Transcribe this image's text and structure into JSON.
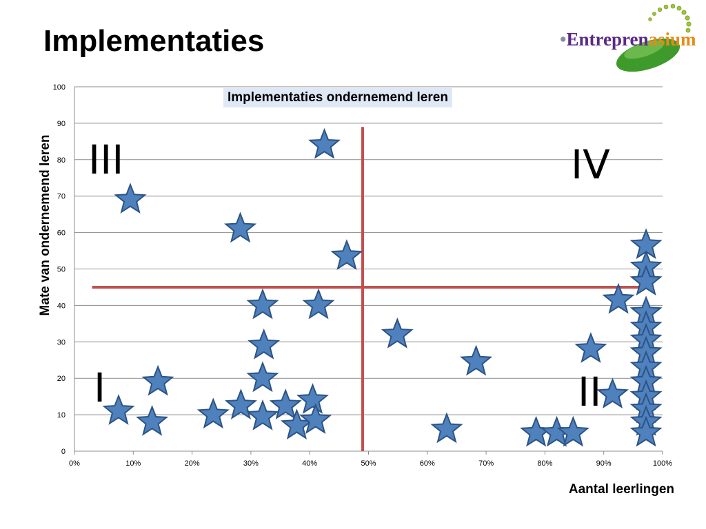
{
  "slide": {
    "title": "Implementaties",
    "logo": {
      "bullet": "•",
      "text_part1": "Entrepren",
      "text_part2": "asium"
    }
  },
  "colors": {
    "star_fill": "#4f81bd",
    "star_stroke": "#2c5386",
    "divider": "#c0504d",
    "gridline": "#8c8c8c",
    "title_bg": "#dfe8f5"
  },
  "icons": {
    "logo": "entreprenasium-logo",
    "marker": "star-icon"
  },
  "chart_data": {
    "type": "scatter",
    "title": "Implementaties ondernemend leren",
    "xlabel": "Aantal leerlingen",
    "ylabel": "Mate van ondernemend leren",
    "xlim": [
      0,
      1
    ],
    "ylim": [
      0,
      100
    ],
    "x_ticks": [
      "0%",
      "10%",
      "20%",
      "30%",
      "40%",
      "50%",
      "60%",
      "70%",
      "80%",
      "90%",
      "100%"
    ],
    "y_ticks": [
      "0",
      "10",
      "20",
      "30",
      "40",
      "50",
      "60",
      "70",
      "80",
      "90",
      "100"
    ],
    "grid": "horizontal",
    "marker": "star",
    "quadrant_lines": {
      "x": 0.49,
      "y": 45,
      "x_span": [
        0.03,
        0.97
      ],
      "y_span": [
        0,
        89
      ]
    },
    "quadrant_labels": [
      "I",
      "II",
      "III",
      "IV"
    ],
    "points": [
      {
        "x": 0.075,
        "y": 11
      },
      {
        "x": 0.095,
        "y": 69
      },
      {
        "x": 0.132,
        "y": 8
      },
      {
        "x": 0.142,
        "y": 19
      },
      {
        "x": 0.236,
        "y": 10
      },
      {
        "x": 0.282,
        "y": 61
      },
      {
        "x": 0.283,
        "y": 12.5
      },
      {
        "x": 0.32,
        "y": 40
      },
      {
        "x": 0.322,
        "y": 29
      },
      {
        "x": 0.32,
        "y": 20
      },
      {
        "x": 0.32,
        "y": 9.5
      },
      {
        "x": 0.359,
        "y": 12.5
      },
      {
        "x": 0.378,
        "y": 7
      },
      {
        "x": 0.405,
        "y": 14
      },
      {
        "x": 0.41,
        "y": 8.5
      },
      {
        "x": 0.415,
        "y": 40
      },
      {
        "x": 0.425,
        "y": 84
      },
      {
        "x": 0.463,
        "y": 53.5
      },
      {
        "x": 0.549,
        "y": 32
      },
      {
        "x": 0.633,
        "y": 6
      },
      {
        "x": 0.683,
        "y": 24.5
      },
      {
        "x": 0.785,
        "y": 5
      },
      {
        "x": 0.82,
        "y": 5
      },
      {
        "x": 0.848,
        "y": 5
      },
      {
        "x": 0.878,
        "y": 28
      },
      {
        "x": 0.915,
        "y": 15.5
      },
      {
        "x": 0.925,
        "y": 41.5
      },
      {
        "x": 0.972,
        "y": 56.5
      },
      {
        "x": 0.972,
        "y": 50.5
      },
      {
        "x": 0.972,
        "y": 46.5
      },
      {
        "x": 0.972,
        "y": 38
      },
      {
        "x": 0.972,
        "y": 34
      },
      {
        "x": 0.972,
        "y": 30.5
      },
      {
        "x": 0.972,
        "y": 27
      },
      {
        "x": 0.972,
        "y": 23
      },
      {
        "x": 0.972,
        "y": 19
      },
      {
        "x": 0.972,
        "y": 15
      },
      {
        "x": 0.972,
        "y": 11.5
      },
      {
        "x": 0.972,
        "y": 8
      },
      {
        "x": 0.972,
        "y": 5
      }
    ]
  }
}
